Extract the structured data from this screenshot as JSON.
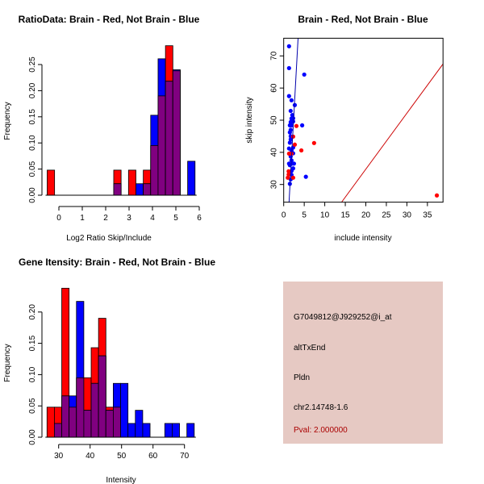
{
  "chart_data": [
    {
      "type": "bar",
      "title": "RatioData: Brain - Red, Not Brain - Blue",
      "xlabel": "Log2 Ratio Skip/Include",
      "ylabel": "Frequency",
      "xticks": [
        "0",
        "1",
        "2",
        "3",
        "4",
        "5",
        "6"
      ],
      "yticks": [
        "0.00",
        "0.05",
        "0.10",
        "0.15",
        "0.20",
        "0.25"
      ],
      "bin_start": -0.5,
      "bin_width": 0.316,
      "series": [
        {
          "name": "Brain",
          "color": "#ff0000",
          "values": [
            0.048,
            0,
            0,
            0,
            0,
            0,
            0,
            0,
            0,
            0.048,
            0,
            0.048,
            0,
            0.048,
            0.095,
            0.19,
            0.286,
            0.238,
            0,
            0
          ]
        },
        {
          "name": "Not Brain",
          "color": "#0000ff",
          "values": [
            0,
            0,
            0,
            0,
            0,
            0,
            0,
            0,
            0,
            0.022,
            0,
            0,
            0.022,
            0.022,
            0.153,
            0.261,
            0.218,
            0.24,
            0,
            0.065
          ]
        }
      ],
      "overlap_color": "#800080"
    },
    {
      "type": "scatter",
      "title": "Brain - Red, Not Brain - Blue",
      "xlabel": "include intensity",
      "ylabel": "skip intensity",
      "xlim": [
        0,
        38.8
      ],
      "ylim": [
        24.5,
        75.5
      ],
      "xticks": [
        "0",
        "5",
        "10",
        "15",
        "20",
        "25",
        "30",
        "35"
      ],
      "yticks": [
        "30",
        "40",
        "50",
        "60",
        "70"
      ],
      "series": [
        {
          "name": "Not Brain",
          "color": "#0000ff",
          "points": [
            [
              1.3,
              73.0
            ],
            [
              1.3,
              66.2
            ],
            [
              5.0,
              64.2
            ],
            [
              1.3,
              57.5
            ],
            [
              1.9,
              56.2
            ],
            [
              2.7,
              54.7
            ],
            [
              1.7,
              52.9
            ],
            [
              2.1,
              51.6
            ],
            [
              2.3,
              50.6
            ],
            [
              1.9,
              50.5
            ],
            [
              1.7,
              49.4
            ],
            [
              2.3,
              49.6
            ],
            [
              1.5,
              48.4
            ],
            [
              1.9,
              48.4
            ],
            [
              4.5,
              48.4
            ],
            [
              1.7,
              47.0
            ],
            [
              1.5,
              46.2
            ],
            [
              1.7,
              45.0
            ],
            [
              1.7,
              44.0
            ],
            [
              1.5,
              43.0
            ],
            [
              1.3,
              41.2
            ],
            [
              2.3,
              41.5
            ],
            [
              1.9,
              40.6
            ],
            [
              2.3,
              39.7
            ],
            [
              1.7,
              38.7
            ],
            [
              1.9,
              37.5
            ],
            [
              2.1,
              36.5
            ],
            [
              1.5,
              36.0
            ],
            [
              2.3,
              35.0
            ],
            [
              1.9,
              34.2
            ],
            [
              1.3,
              36.5
            ],
            [
              2.5,
              36.5
            ],
            [
              5.4,
              32.4
            ],
            [
              1.7,
              31.6
            ],
            [
              1.9,
              33.0
            ],
            [
              1.5,
              30.2
            ]
          ]
        },
        {
          "name": "Brain",
          "color": "#ff0000",
          "points": [
            [
              3.1,
              48.2
            ],
            [
              2.3,
              44.9
            ],
            [
              2.7,
              42.4
            ],
            [
              7.4,
              42.9
            ],
            [
              4.3,
              40.6
            ],
            [
              1.3,
              39.6
            ],
            [
              1.9,
              39.6
            ],
            [
              1.2,
              34.1
            ],
            [
              1.2,
              33.1
            ],
            [
              1.0,
              32.1
            ],
            [
              2.3,
              32.1
            ],
            [
              37.3,
              26.6
            ]
          ]
        }
      ],
      "lines": [
        {
          "name": "Not Brain fit",
          "color": "#0000aa",
          "from": [
            1.3,
            24.5
          ],
          "to": [
            3.5,
            75.5
          ]
        },
        {
          "name": "Brain fit",
          "color": "#cc0000",
          "from": [
            14.1,
            24.5
          ],
          "to": [
            38.8,
            67.5
          ]
        }
      ]
    },
    {
      "type": "bar",
      "title": "Gene Itensity: Brain - Red, Not Brain - Blue",
      "xlabel": "Intensity",
      "ylabel": "Frequency",
      "xticks": [
        "30",
        "40",
        "50",
        "60",
        "70"
      ],
      "yticks": [
        "0.00",
        "0.05",
        "0.10",
        "0.15",
        "0.20"
      ],
      "bin_start": 26.3,
      "bin_width": 2.34,
      "series": [
        {
          "name": "Brain",
          "color": "#ff0000",
          "values": [
            0.048,
            0.048,
            0.238,
            0.048,
            0.095,
            0.095,
            0.143,
            0.19,
            0.048,
            0.048,
            0,
            0,
            0,
            0,
            0,
            0,
            0,
            0,
            0,
            0
          ]
        },
        {
          "name": "Not Brain",
          "color": "#0000ff",
          "values": [
            0,
            0.022,
            0.066,
            0.066,
            0.217,
            0.043,
            0.086,
            0.13,
            0.043,
            0.086,
            0.086,
            0.022,
            0.043,
            0.022,
            0,
            0,
            0.022,
            0.022,
            0,
            0.022
          ]
        }
      ],
      "overlap_color": "#800080"
    }
  ],
  "info_panel": {
    "background": "#e6c9c3",
    "probe": "G7049812@J929252@i_at",
    "event": "altTxEnd",
    "gene": "Pldn",
    "location": "chr2.14748-1.6",
    "pval": "Pval: 2.000000",
    "pval_color": "#aa0000"
  }
}
